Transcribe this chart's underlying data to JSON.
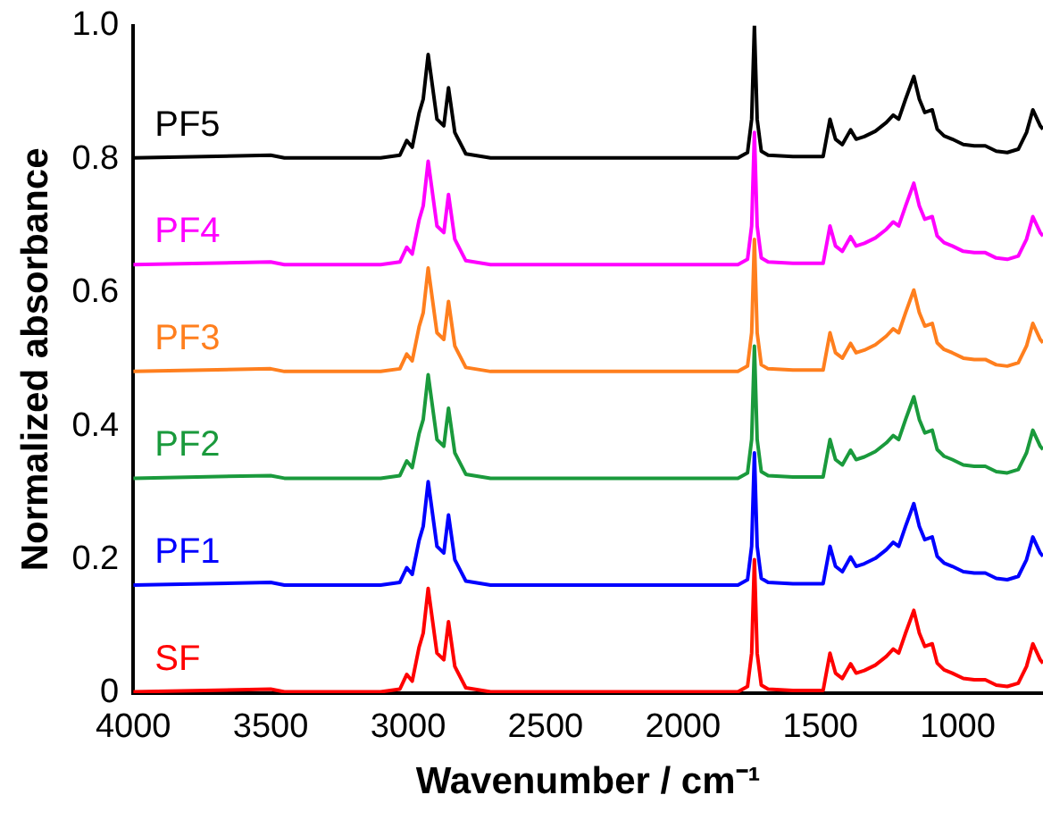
{
  "chart_data": {
    "type": "line",
    "xlabel": "Wavenumber / cm⁻¹",
    "ylabel": "Normalized absorbance",
    "x": [
      4000,
      3500,
      3450,
      3100,
      3030,
      3005,
      2985,
      2960,
      2945,
      2927,
      2895,
      2870,
      2853,
      2830,
      2790,
      2700,
      2000,
      1800,
      1765,
      1750,
      1740,
      1730,
      1715,
      1690,
      1600,
      1490,
      1465,
      1445,
      1420,
      1390,
      1370,
      1340,
      1300,
      1260,
      1235,
      1215,
      1190,
      1160,
      1140,
      1120,
      1093,
      1075,
      1050,
      1020,
      980,
      940,
      900,
      860,
      820,
      780,
      750,
      727,
      700,
      690
    ],
    "series": [
      {
        "name": "SF",
        "color": "#ff0000",
        "values": [
          0.002,
          0.006,
          0.002,
          0.002,
          0.006,
          0.028,
          0.018,
          0.069,
          0.09,
          0.157,
          0.06,
          0.05,
          0.107,
          0.04,
          0.008,
          0.002,
          0.002,
          0.002,
          0.01,
          0.06,
          0.2,
          0.06,
          0.012,
          0.006,
          0.004,
          0.004,
          0.06,
          0.03,
          0.022,
          0.044,
          0.03,
          0.034,
          0.042,
          0.055,
          0.066,
          0.06,
          0.09,
          0.124,
          0.09,
          0.07,
          0.074,
          0.045,
          0.035,
          0.03,
          0.022,
          0.02,
          0.02,
          0.012,
          0.01,
          0.015,
          0.04,
          0.074,
          0.05,
          0.045
        ]
      },
      {
        "name": "PF1",
        "color": "#0000ff",
        "values": [
          0.162,
          0.166,
          0.162,
          0.162,
          0.166,
          0.188,
          0.178,
          0.229,
          0.25,
          0.317,
          0.22,
          0.21,
          0.267,
          0.2,
          0.168,
          0.162,
          0.162,
          0.162,
          0.17,
          0.22,
          0.36,
          0.22,
          0.172,
          0.166,
          0.164,
          0.164,
          0.22,
          0.19,
          0.182,
          0.204,
          0.19,
          0.194,
          0.202,
          0.215,
          0.226,
          0.22,
          0.25,
          0.284,
          0.25,
          0.23,
          0.234,
          0.205,
          0.195,
          0.19,
          0.182,
          0.18,
          0.18,
          0.172,
          0.17,
          0.175,
          0.2,
          0.234,
          0.21,
          0.205
        ]
      },
      {
        "name": "PF2",
        "color": "#1a9a3c",
        "values": [
          0.322,
          0.326,
          0.322,
          0.322,
          0.326,
          0.348,
          0.338,
          0.389,
          0.41,
          0.477,
          0.38,
          0.37,
          0.427,
          0.36,
          0.328,
          0.322,
          0.322,
          0.322,
          0.33,
          0.38,
          0.52,
          0.38,
          0.332,
          0.326,
          0.324,
          0.324,
          0.38,
          0.35,
          0.342,
          0.364,
          0.35,
          0.354,
          0.362,
          0.375,
          0.386,
          0.38,
          0.41,
          0.444,
          0.41,
          0.39,
          0.394,
          0.365,
          0.355,
          0.35,
          0.342,
          0.34,
          0.34,
          0.332,
          0.33,
          0.335,
          0.36,
          0.394,
          0.37,
          0.365
        ]
      },
      {
        "name": "PF3",
        "color": "#ff7f1e",
        "values": [
          0.482,
          0.486,
          0.482,
          0.482,
          0.486,
          0.508,
          0.498,
          0.549,
          0.57,
          0.637,
          0.54,
          0.53,
          0.587,
          0.52,
          0.488,
          0.482,
          0.482,
          0.482,
          0.49,
          0.54,
          0.68,
          0.54,
          0.492,
          0.486,
          0.484,
          0.484,
          0.54,
          0.51,
          0.502,
          0.524,
          0.51,
          0.514,
          0.522,
          0.535,
          0.546,
          0.54,
          0.57,
          0.604,
          0.57,
          0.55,
          0.554,
          0.525,
          0.515,
          0.51,
          0.502,
          0.5,
          0.5,
          0.492,
          0.49,
          0.495,
          0.52,
          0.554,
          0.53,
          0.525
        ]
      },
      {
        "name": "PF4",
        "color": "#ff00ff",
        "values": [
          0.642,
          0.646,
          0.642,
          0.642,
          0.646,
          0.668,
          0.658,
          0.709,
          0.73,
          0.797,
          0.7,
          0.69,
          0.747,
          0.68,
          0.648,
          0.642,
          0.642,
          0.642,
          0.65,
          0.7,
          0.84,
          0.7,
          0.652,
          0.646,
          0.644,
          0.644,
          0.7,
          0.67,
          0.662,
          0.684,
          0.67,
          0.674,
          0.682,
          0.695,
          0.706,
          0.7,
          0.73,
          0.764,
          0.73,
          0.71,
          0.714,
          0.685,
          0.675,
          0.67,
          0.662,
          0.66,
          0.66,
          0.652,
          0.65,
          0.655,
          0.68,
          0.714,
          0.69,
          0.685
        ]
      },
      {
        "name": "PF5",
        "color": "#000000",
        "values": [
          0.802,
          0.806,
          0.802,
          0.802,
          0.806,
          0.828,
          0.818,
          0.869,
          0.89,
          0.957,
          0.86,
          0.85,
          0.907,
          0.84,
          0.808,
          0.802,
          0.802,
          0.802,
          0.81,
          0.86,
          1.0,
          0.86,
          0.812,
          0.806,
          0.804,
          0.804,
          0.86,
          0.83,
          0.822,
          0.844,
          0.83,
          0.834,
          0.842,
          0.855,
          0.866,
          0.86,
          0.89,
          0.924,
          0.89,
          0.87,
          0.874,
          0.845,
          0.835,
          0.83,
          0.822,
          0.82,
          0.82,
          0.812,
          0.81,
          0.815,
          0.84,
          0.874,
          0.85,
          0.845
        ]
      }
    ],
    "xlim": [
      4000,
      690
    ],
    "xticks": [
      4000,
      3500,
      3000,
      2500,
      2000,
      1500,
      1000
    ],
    "ylim": [
      0,
      1
    ],
    "yticks": [
      0,
      0.2,
      0.4,
      0.6,
      0.8,
      {
        "value": 1,
        "label": "1.0"
      }
    ],
    "grid": false,
    "legend": false,
    "marker": "none",
    "line_style": "solid"
  }
}
